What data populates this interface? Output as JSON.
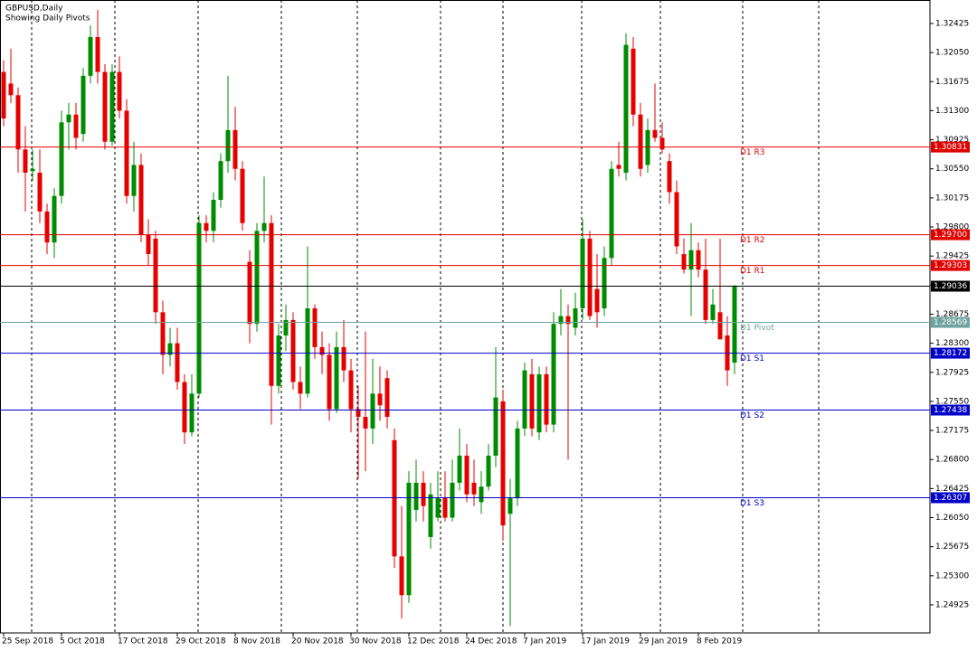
{
  "chart_data": {
    "type": "candlestick",
    "title": "GBPUSD,Daily",
    "subtitle": "Showing Daily Pivots",
    "up_color": "#008c00",
    "down_color": "#e60000",
    "last_price_color": "#000000",
    "ylim": [
      1.24563,
      1.32728
    ],
    "yticks": [
      1.32425,
      {
        "value": 1.3205,
        "label": "1.32050"
      },
      1.31675,
      {
        "value": 1.313,
        "label": "1.31300"
      },
      1.30925,
      {
        "value": 1.3055,
        "label": "1.30550"
      },
      1.30175,
      {
        "value": 1.298,
        "label": "1.29800"
      },
      1.29425,
      {
        "value": 1.2905,
        "label": "1.29050"
      },
      1.28675,
      {
        "value": 1.283,
        "label": "1.28300"
      },
      1.27925,
      {
        "value": 1.2755,
        "label": "1.27550"
      },
      1.27175,
      {
        "value": 1.268,
        "label": "1.26800"
      },
      1.26425,
      {
        "value": 1.2605,
        "label": "1.26050"
      },
      1.25675,
      {
        "value": 1.253,
        "label": "1.25300"
      },
      1.24925
    ],
    "pivots": {
      "names": [
        "D1 R3",
        "D1 R2",
        "D1 R1",
        "D1 Pivot",
        "D1 S1",
        "D1 S2",
        "D1 S3"
      ],
      "values": [
        1.30831,
        1.297,
        1.29303,
        1.28569,
        1.28172,
        1.27438,
        1.26307
      ],
      "value_labels": [
        "1.30831",
        "1.29700",
        "1.29303",
        "1.28569",
        "1.28172",
        "1.27438",
        "1.26307"
      ],
      "colors": [
        "#e00000",
        "#e00000",
        "#e00000",
        "#6fa3a0",
        "#0000c8",
        "#0000c8",
        "#0000c8"
      ]
    },
    "categories": [
      "25 Sep 2018",
      null,
      null,
      null,
      null,
      null,
      null,
      null,
      "5 Oct 2018",
      null,
      null,
      null,
      null,
      null,
      null,
      null,
      "17 Oct 2018",
      null,
      null,
      null,
      null,
      null,
      null,
      null,
      "29 Oct 2018",
      null,
      null,
      null,
      null,
      null,
      null,
      null,
      "8 Nov 2018",
      null,
      null,
      null,
      null,
      null,
      null,
      null,
      "20 Nov 2018",
      null,
      null,
      null,
      null,
      null,
      null,
      null,
      "30 Nov 2018",
      null,
      null,
      null,
      null,
      null,
      null,
      null,
      "12 Dec 2018",
      null,
      null,
      null,
      null,
      null,
      null,
      null,
      "24 Dec 2018",
      null,
      null,
      null,
      null,
      null,
      null,
      null,
      "7 Jan 2019",
      null,
      null,
      null,
      null,
      null,
      null,
      null,
      "17 Jan 2019",
      null,
      null,
      null,
      null,
      null,
      null,
      null,
      "29 Jan 2019",
      null,
      null,
      null,
      null,
      null,
      null,
      null,
      "8 Feb 2019",
      null,
      null,
      null,
      null,
      null
    ],
    "open": [
      1.318,
      1.3165,
      1.315,
      1.308,
      1.3052,
      1.305,
      1.3,
      1.296,
      1.302,
      1.3115,
      1.3125,
      1.31,
      1.3175,
      1.3225,
      1.318,
      1.309,
      1.318,
      1.313,
      1.302,
      1.306,
      1.297,
      1.2965,
      1.287,
      1.2815,
      1.283,
      1.278,
      1.2715,
      1.2765,
      1.2985,
      1.2975,
      1.3015,
      1.3065,
      1.3105,
      1.3055,
      1.2935,
      1.2855,
      1.2975,
      1.2985,
      1.2775,
      1.284,
      1.286,
      1.278,
      1.2765,
      1.2875,
      1.2825,
      1.2815,
      1.2745,
      1.2825,
      1.2795,
      1.2745,
      1.2735,
      1.272,
      1.2765,
      1.2785,
      1.2705,
      1.2555,
      1.2505,
      1.2615,
      1.265,
      1.258,
      1.2605,
      1.263,
      1.2605,
      1.265,
      1.2685,
      1.265,
      1.2625,
      1.2645,
      1.2685,
      1.2755,
      1.261,
      1.263,
      1.272,
      1.279,
      1.2715,
      1.279,
      1.2725,
      1.2855,
      1.2865,
      1.285,
      1.2875,
      1.2965,
      1.29,
      1.2875,
      1.294,
      1.306,
      1.305,
      1.321,
      1.3125,
      1.306,
      1.3105,
      1.3095,
      1.3065,
      1.3025,
      1.2945,
      1.2925,
      1.295,
      1.2925,
      1.286,
      1.287,
      1.284,
      1.2805
    ],
    "high": [
      1.3195,
      1.321,
      1.316,
      1.311,
      1.308,
      1.308,
      1.301,
      1.303,
      1.313,
      1.314,
      1.314,
      1.3185,
      1.324,
      1.326,
      1.319,
      1.319,
      1.32,
      1.3145,
      1.309,
      1.3075,
      1.299,
      1.2975,
      1.2885,
      1.285,
      1.285,
      1.279,
      1.279,
      1.2995,
      1.2995,
      1.3025,
      1.3075,
      1.3175,
      1.3135,
      1.3065,
      1.295,
      1.2985,
      1.3045,
      1.2995,
      1.2855,
      1.288,
      1.287,
      1.28,
      1.2955,
      1.288,
      1.2845,
      1.283,
      1.2845,
      1.286,
      1.281,
      1.2775,
      1.2845,
      1.281,
      1.28,
      1.2795,
      1.272,
      1.262,
      1.2665,
      1.268,
      1.2665,
      1.265,
      1.2665,
      1.2665,
      1.268,
      1.272,
      1.27,
      1.268,
      1.2665,
      1.27,
      1.2825,
      1.277,
      1.2655,
      1.273,
      1.2805,
      1.281,
      1.28,
      1.28,
      1.287,
      1.29,
      1.288,
      1.2895,
      1.299,
      1.2975,
      1.2945,
      1.2955,
      1.3065,
      1.309,
      1.323,
      1.3225,
      1.314,
      1.312,
      1.3165,
      1.3115,
      1.3075,
      1.304,
      1.2965,
      1.2985,
      1.296,
      1.2965,
      1.29,
      1.2965,
      1.2865,
      1.2905
    ],
    "low": [
      1.311,
      1.314,
      1.305,
      1.3,
      1.304,
      1.2985,
      1.2945,
      1.294,
      1.301,
      1.308,
      1.308,
      1.309,
      1.3165,
      1.3165,
      1.308,
      1.3085,
      1.312,
      1.301,
      1.3,
      1.296,
      1.293,
      1.2855,
      1.279,
      1.28,
      1.277,
      1.27,
      1.271,
      1.276,
      1.296,
      1.296,
      1.3005,
      1.305,
      1.304,
      1.2975,
      1.283,
      1.2845,
      1.296,
      1.2725,
      1.2765,
      1.282,
      1.277,
      1.2745,
      1.276,
      1.281,
      1.279,
      1.273,
      1.274,
      1.278,
      1.2715,
      1.2655,
      1.2665,
      1.27,
      1.273,
      1.272,
      1.254,
      1.2475,
      1.2495,
      1.26,
      1.26,
      1.2565,
      1.26,
      1.26,
      1.26,
      1.264,
      1.2625,
      1.262,
      1.261,
      1.264,
      1.267,
      1.2575,
      1.2465,
      1.262,
      1.271,
      1.271,
      1.2705,
      1.2715,
      1.2715,
      1.284,
      1.268,
      1.284,
      1.286,
      1.286,
      1.285,
      1.2865,
      1.293,
      1.3045,
      1.304,
      1.311,
      1.3045,
      1.305,
      1.309,
      1.3075,
      1.301,
      1.2945,
      1.292,
      1.2865,
      1.2915,
      1.2855,
      1.2855,
      1.2835,
      1.2775,
      1.279
    ],
    "close": [
      1.312,
      1.315,
      1.308,
      1.305,
      1.3055,
      1.3,
      1.296,
      1.302,
      1.3115,
      1.3125,
      1.3095,
      1.3175,
      1.3225,
      1.318,
      1.309,
      1.318,
      1.313,
      1.302,
      1.306,
      1.297,
      1.2945,
      1.287,
      1.2815,
      1.283,
      1.278,
      1.2715,
      1.2765,
      1.2985,
      1.2975,
      1.3015,
      1.3065,
      1.3105,
      1.3055,
      1.2985,
      1.2855,
      1.2975,
      1.2985,
      1.2775,
      1.284,
      1.286,
      1.278,
      1.2765,
      1.2875,
      1.2825,
      1.2815,
      1.2745,
      1.2825,
      1.2795,
      1.2745,
      1.2735,
      1.272,
      1.2765,
      1.275,
      1.2735,
      1.2555,
      1.2505,
      1.265,
      1.265,
      1.262,
      1.2635,
      1.263,
      1.2605,
      1.265,
      1.2685,
      1.2635,
      1.2635,
      1.2645,
      1.2685,
      1.276,
      1.2595,
      1.263,
      1.272,
      1.2795,
      1.272,
      1.279,
      1.2725,
      1.2855,
      1.2865,
      1.2855,
      1.2875,
      1.2965,
      1.2865,
      1.287,
      1.294,
      1.3055,
      1.3055,
      1.3215,
      1.3125,
      1.3055,
      1.3105,
      1.3095,
      1.308,
      1.3025,
      1.2955,
      1.2925,
      1.295,
      1.2925,
      1.286,
      1.288,
      1.2835,
      1.2795,
      1.29036
    ]
  }
}
